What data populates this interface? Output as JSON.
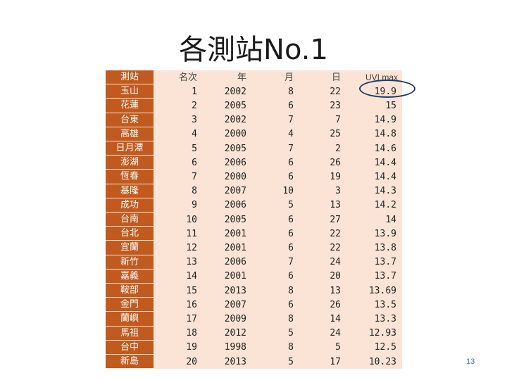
{
  "slide": {
    "title": "各測站No.1",
    "page_number": "13"
  },
  "table": {
    "headers": [
      "測站",
      "名次",
      "年",
      "月",
      "日",
      "UVI max"
    ],
    "rows": [
      [
        "玉山",
        "1",
        "2002",
        "8",
        "22",
        "19.9"
      ],
      [
        "花蓮",
        "2",
        "2005",
        "6",
        "23",
        "15"
      ],
      [
        "台東",
        "3",
        "2002",
        "7",
        "7",
        "14.9"
      ],
      [
        "高雄",
        "4",
        "2000",
        "4",
        "25",
        "14.8"
      ],
      [
        "日月潭",
        "5",
        "2005",
        "7",
        "2",
        "14.6"
      ],
      [
        "澎湖",
        "6",
        "2006",
        "6",
        "26",
        "14.4"
      ],
      [
        "恆春",
        "7",
        "2000",
        "6",
        "19",
        "14.4"
      ],
      [
        "基隆",
        "8",
        "2007",
        "10",
        "3",
        "14.3"
      ],
      [
        "成功",
        "9",
        "2006",
        "5",
        "13",
        "14.2"
      ],
      [
        "台南",
        "10",
        "2005",
        "6",
        "27",
        "14"
      ],
      [
        "台北",
        "11",
        "2001",
        "6",
        "22",
        "13.9"
      ],
      [
        "宜蘭",
        "12",
        "2001",
        "6",
        "22",
        "13.8"
      ],
      [
        "新竹",
        "13",
        "2006",
        "7",
        "24",
        "13.7"
      ],
      [
        "嘉義",
        "14",
        "2001",
        "6",
        "20",
        "13.7"
      ],
      [
        "鞍部",
        "15",
        "2013",
        "8",
        "13",
        "13.69"
      ],
      [
        "金門",
        "16",
        "2007",
        "6",
        "26",
        "13.5"
      ],
      [
        "蘭嶼",
        "17",
        "2009",
        "8",
        "14",
        "13.3"
      ],
      [
        "馬祖",
        "18",
        "2012",
        "5",
        "24",
        "12.93"
      ],
      [
        "台中",
        "19",
        "1998",
        "8",
        "5",
        "12.5"
      ],
      [
        "新島",
        "20",
        "2013",
        "5",
        "17",
        "10.23"
      ]
    ]
  },
  "colors": {
    "station_column": "#c15a1e",
    "row_background": "#fbe4d5",
    "highlight_ring": "#1f3b73"
  }
}
